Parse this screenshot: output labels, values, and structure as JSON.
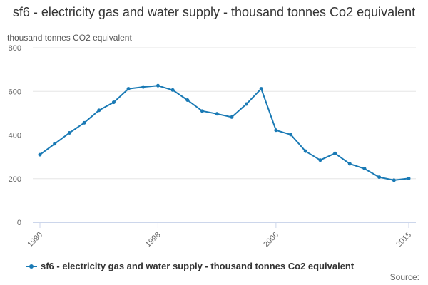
{
  "colors": {
    "series": "#1a7ab5",
    "grid": "#e6e6e6",
    "axis": "#ccd6eb"
  },
  "legend": {
    "label": "sf6 - electricity gas and water supply - thousand tonnes Co2 equivalent"
  },
  "footer": {
    "source": "Source:"
  },
  "chart_data": {
    "type": "line",
    "title": "sf6 - electricity gas and water supply - thousand tonnes Co2 equivalent",
    "ylabel": "thousand tonnes CO2 equivalent",
    "xlabel": "",
    "ylim": [
      0,
      800
    ],
    "yticks": [
      0,
      200,
      400,
      600,
      800
    ],
    "xlim": [
      1990,
      2015
    ],
    "xticks": [
      1990,
      1998,
      2006,
      2015
    ],
    "grid": true,
    "legend_position": "bottom-left",
    "series": [
      {
        "name": "sf6 - electricity gas and water supply - thousand tonnes Co2 equivalent",
        "x": [
          1990,
          1991,
          1992,
          1993,
          1994,
          1995,
          1996,
          1997,
          1998,
          1999,
          2000,
          2001,
          2002,
          2003,
          2004,
          2005,
          2006,
          2007,
          2008,
          2009,
          2010,
          2011,
          2012,
          2013,
          2014,
          2015
        ],
        "values": [
          310,
          360,
          410,
          456,
          513,
          550,
          612,
          620,
          626,
          606,
          560,
          510,
          497,
          482,
          542,
          612,
          422,
          402,
          326,
          285,
          316,
          268,
          246,
          207,
          193,
          201
        ]
      }
    ]
  }
}
